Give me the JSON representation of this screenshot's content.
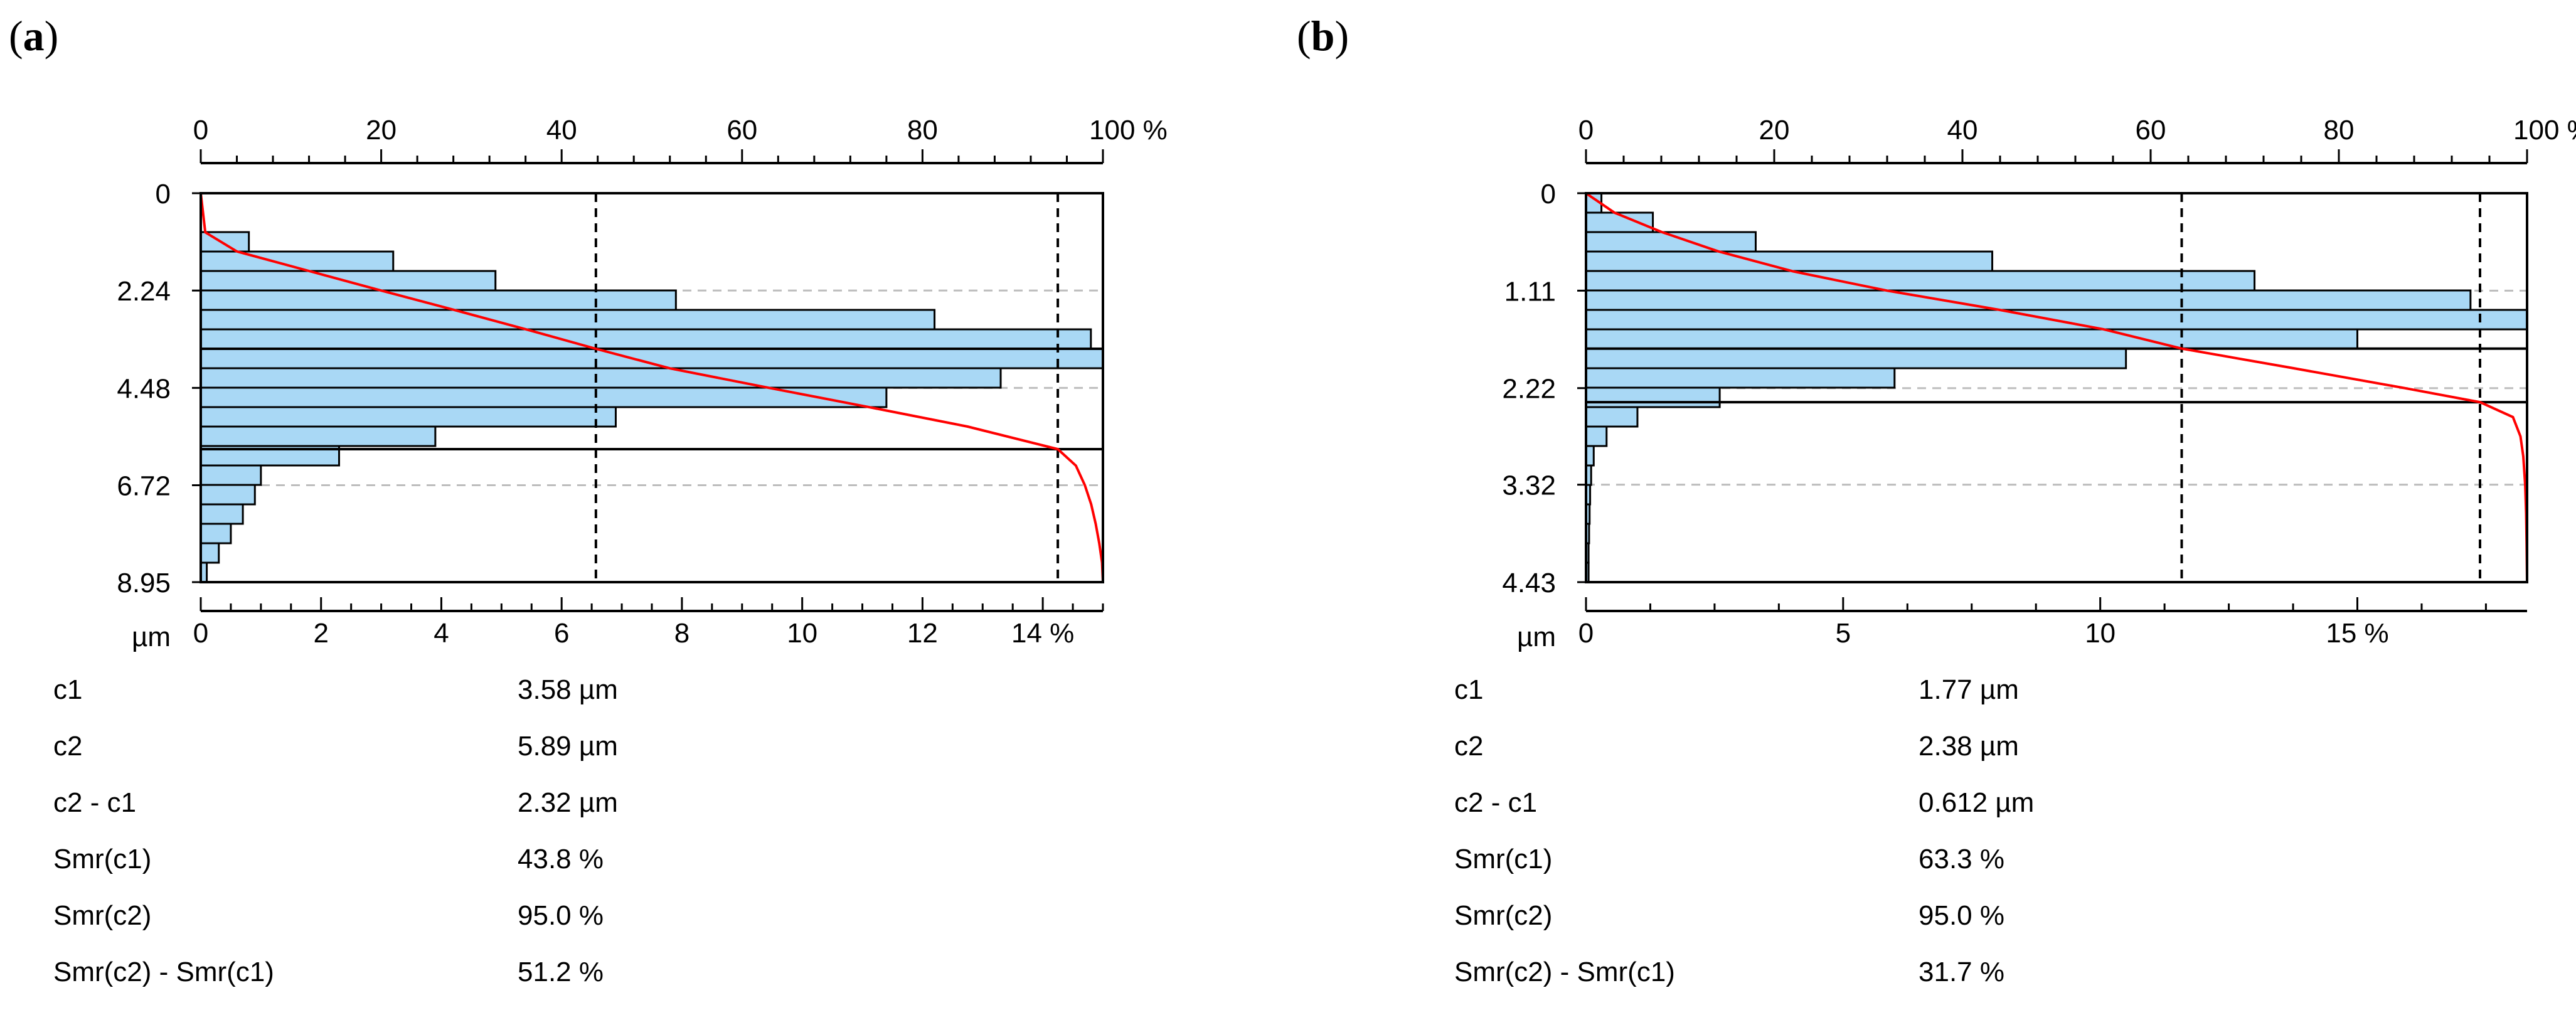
{
  "chart_data": [
    {
      "id": "a",
      "type": "bar",
      "panel_label": "a",
      "top_axis": {
        "ticks": [
          0,
          20,
          40,
          60,
          80,
          100
        ],
        "labels": [
          "0",
          "20",
          "40",
          "60",
          "80",
          "100 %"
        ],
        "range": [
          0,
          100
        ]
      },
      "bottom_axis": {
        "ticks": [
          0,
          2,
          4,
          6,
          8,
          10,
          12,
          14
        ],
        "labels": [
          "0",
          "2",
          "4",
          "6",
          "8",
          "10",
          "12",
          "14 %"
        ],
        "range": [
          0,
          15
        ]
      },
      "y_axis": {
        "ticks": [
          0,
          2.24,
          4.48,
          6.72,
          8.95
        ],
        "labels": [
          "0",
          "2.24",
          "4.48",
          "6.72",
          "8.95"
        ],
        "unit": "µm",
        "range": [
          0,
          8.95
        ]
      },
      "histogram": {
        "bin_width": 0.4475,
        "values": [
          0,
          0,
          0.8,
          3.2,
          4.9,
          7.9,
          12.2,
          14.8,
          15.0,
          13.3,
          11.4,
          6.9,
          3.9,
          2.3,
          1.0,
          0.9,
          0.7,
          0.5,
          0.3,
          0.1
        ]
      },
      "bearing_curve": {
        "depth": [
          0,
          0.9,
          1.34,
          1.79,
          2.24,
          2.68,
          3.13,
          3.58,
          4.03,
          4.48,
          4.92,
          5.37,
          5.89,
          6.27,
          6.72,
          7.16,
          7.61,
          8.06,
          8.5,
          8.95
        ],
        "percent": [
          0,
          0.5,
          4,
          12,
          20,
          28,
          36,
          43.8,
          52,
          63,
          74,
          85,
          95,
          97,
          98,
          98.7,
          99.2,
          99.6,
          99.9,
          100
        ]
      },
      "c1_depth": 3.58,
      "c2_depth": 5.89,
      "smr_c1_percent": 43.8,
      "smr_c2_percent": 95.0,
      "stats": [
        {
          "name": "c1",
          "value": "3.58 µm"
        },
        {
          "name": "c2",
          "value": "5.89 µm"
        },
        {
          "name": "c2 - c1",
          "value": "2.32 µm"
        },
        {
          "name": "Smr(c1)",
          "value": "43.8 %"
        },
        {
          "name": "Smr(c2)",
          "value": "95.0 %"
        },
        {
          "name": "Smr(c2) - Smr(c1)",
          "value": "51.2 %"
        }
      ]
    },
    {
      "id": "b",
      "type": "bar",
      "panel_label": "b",
      "top_axis": {
        "ticks": [
          0,
          20,
          40,
          60,
          80,
          100
        ],
        "labels": [
          "0",
          "20",
          "40",
          "60",
          "80",
          "100 %"
        ],
        "range": [
          0,
          100
        ]
      },
      "bottom_axis": {
        "ticks": [
          0,
          5,
          10,
          15
        ],
        "labels": [
          "0",
          "5",
          "10",
          "15 %"
        ],
        "range": [
          0,
          18.3
        ]
      },
      "y_axis": {
        "ticks": [
          0,
          1.11,
          2.22,
          3.32,
          4.43
        ],
        "labels": [
          "0",
          "1.11",
          "2.22",
          "3.32",
          "4.43"
        ],
        "unit": "µm",
        "range": [
          0,
          4.43
        ]
      },
      "histogram": {
        "bin_width": 0.2215,
        "values": [
          0.3,
          1.3,
          3.3,
          7.9,
          13.0,
          17.2,
          18.3,
          15.0,
          10.5,
          6.0,
          2.6,
          1.0,
          0.4,
          0.15,
          0.1,
          0.08,
          0.07,
          0.06,
          0.05,
          0.05
        ]
      },
      "bearing_curve": {
        "depth": [
          0,
          0.22,
          0.44,
          0.66,
          0.89,
          1.11,
          1.33,
          1.55,
          1.77,
          1.99,
          2.22,
          2.38,
          2.55,
          2.77,
          3.0,
          3.32,
          3.65,
          4.0,
          4.43
        ],
        "percent": [
          0,
          3,
          8,
          14,
          22,
          32,
          44,
          55,
          63.3,
          75,
          87,
          95,
          98.5,
          99.3,
          99.6,
          99.8,
          99.9,
          99.95,
          100
        ]
      },
      "c1_depth": 1.77,
      "c2_depth": 2.38,
      "smr_c1_percent": 63.3,
      "smr_c2_percent": 95.0,
      "stats": [
        {
          "name": "c1",
          "value": "1.77 µm"
        },
        {
          "name": "c2",
          "value": "2.38 µm"
        },
        {
          "name": "c2 - c1",
          "value": "0.612 µm"
        },
        {
          "name": "Smr(c1)",
          "value": "63.3 %"
        },
        {
          "name": "Smr(c2)",
          "value": "95.0 %"
        },
        {
          "name": "Smr(c2) - Smr(c1)",
          "value": "31.7 %"
        }
      ]
    }
  ]
}
